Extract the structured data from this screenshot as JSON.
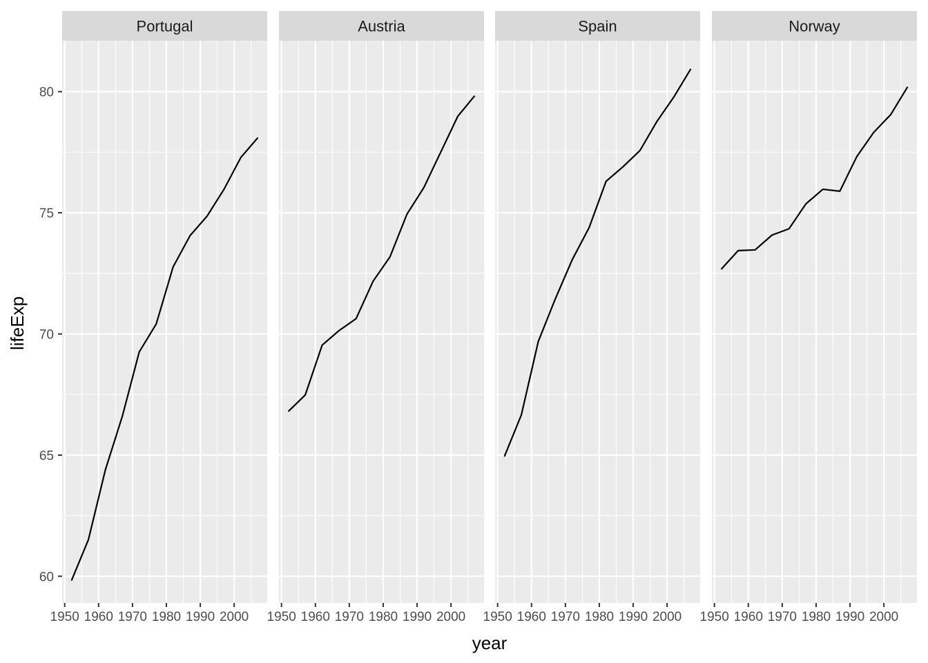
{
  "chart_data": {
    "type": "line",
    "xlabel": "year",
    "ylabel": "lifeExp",
    "xlim": [
      1949.25,
      2009.75
    ],
    "ylim": [
      58.9,
      82.1
    ],
    "x_ticks": [
      1950,
      1960,
      1970,
      1980,
      1990,
      2000
    ],
    "y_ticks": [
      60,
      65,
      70,
      75,
      80
    ],
    "grid": true,
    "x": [
      1952,
      1957,
      1962,
      1967,
      1972,
      1977,
      1982,
      1987,
      1992,
      1997,
      2002,
      2007
    ],
    "panels": [
      {
        "label": "Portugal",
        "values": [
          59.82,
          61.51,
          64.39,
          66.6,
          69.26,
          70.41,
          72.77,
          74.06,
          74.86,
          75.97,
          77.29,
          78.1
        ]
      },
      {
        "label": "Austria",
        "values": [
          66.8,
          67.48,
          69.54,
          70.14,
          70.63,
          72.17,
          73.18,
          74.94,
          76.04,
          77.51,
          78.98,
          79.83
        ]
      },
      {
        "label": "Spain",
        "values": [
          64.94,
          66.66,
          69.69,
          71.44,
          73.06,
          74.39,
          76.3,
          76.9,
          77.57,
          78.77,
          79.78,
          80.94
        ]
      },
      {
        "label": "Norway",
        "values": [
          72.67,
          73.44,
          73.47,
          74.08,
          74.34,
          75.37,
          75.97,
          75.89,
          77.32,
          78.32,
          79.05,
          80.2
        ]
      }
    ]
  }
}
